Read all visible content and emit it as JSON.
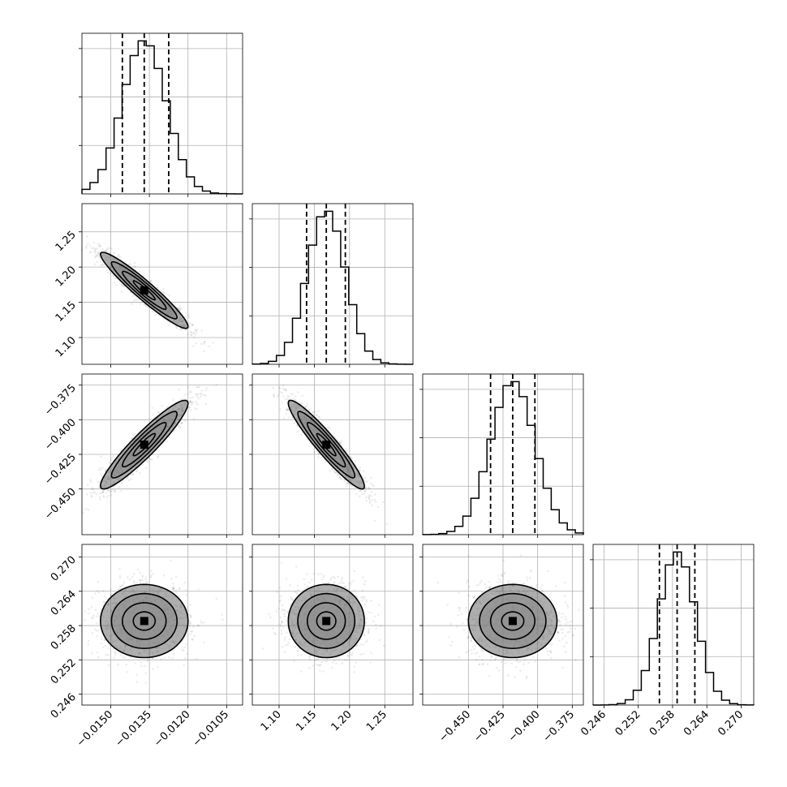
{
  "chart_data": {
    "type": "corner",
    "parameters": [
      {
        "mean": -0.0137,
        "std": 0.00085,
        "quantiles": [
          -0.01455,
          -0.0137,
          -0.01275
        ],
        "range": [
          -0.01612,
          -0.00988
        ],
        "ticks": [
          -0.015,
          -0.0135,
          -0.012,
          -0.0105
        ],
        "tick_labels": [
          "−0.0150",
          "−0.0135",
          "−0.0120",
          "−0.0105"
        ]
      },
      {
        "mean": 1.167,
        "std": 0.027,
        "quantiles": [
          1.139,
          1.167,
          1.194
        ],
        "range": [
          1.062,
          1.29
        ],
        "ticks": [
          1.1,
          1.15,
          1.2,
          1.25
        ],
        "tick_labels": [
          "1.10",
          "1.15",
          "1.20",
          "1.25"
        ]
      },
      {
        "mean": -0.418,
        "std": 0.016,
        "quantiles": [
          -0.434,
          -0.418,
          -0.402
        ],
        "range": [
          -0.483,
          -0.367
        ],
        "ticks": [
          -0.45,
          -0.425,
          -0.4,
          -0.375
        ],
        "tick_labels": [
          "−0.450",
          "−0.425",
          "−0.400",
          "−0.375"
        ]
      },
      {
        "mean": 0.2588,
        "std": 0.0032,
        "quantiles": [
          0.2557,
          0.2588,
          0.2619
        ],
        "range": [
          0.2441,
          0.2722
        ],
        "ticks": [
          0.246,
          0.252,
          0.258,
          0.264,
          0.27
        ],
        "tick_labels": [
          "0.246",
          "0.252",
          "0.258",
          "0.264",
          "0.270"
        ]
      }
    ],
    "correlations": {
      "1-0": -0.95,
      "2-0": 0.93,
      "2-1": -0.94,
      "3-0": 0.0,
      "3-1": 0.0,
      "3-2": 0.0
    },
    "histogram_bins": 20,
    "contour_levels": [
      0.118,
      0.393,
      0.675,
      0.865
    ],
    "grid": true
  }
}
